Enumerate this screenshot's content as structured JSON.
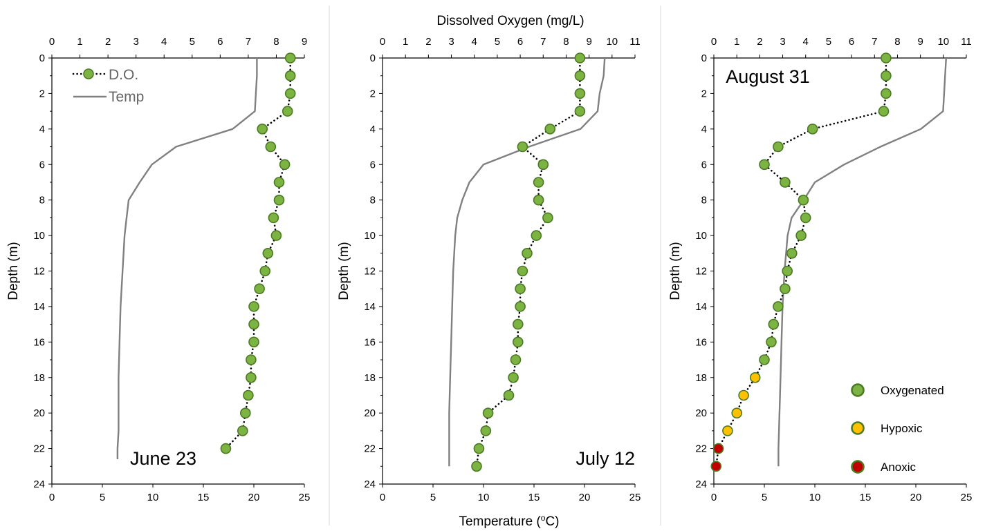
{
  "top_axis_title": "Dissolved Oxygen (mg/L)",
  "bottom_axis_title": "Temperature (°C)",
  "chart_data": [
    {
      "type": "line",
      "date_label": "June 23",
      "ylabel": "Depth (m)",
      "y_axis": {
        "range": [
          0,
          24
        ],
        "reversed": true,
        "ticks": [
          "0",
          "2",
          "4",
          "6",
          "8",
          "10",
          "12",
          "14",
          "16",
          "18",
          "20",
          "22",
          "24"
        ]
      },
      "do_axis": {
        "label": "",
        "range": [
          0,
          9
        ],
        "ticks": [
          "0",
          "1",
          "2",
          "3",
          "4",
          "5",
          "6",
          "7",
          "8",
          "9"
        ]
      },
      "temp_axis": {
        "label": "",
        "range": [
          0,
          25
        ],
        "ticks": [
          "0",
          "5",
          "10",
          "15",
          "20",
          "25"
        ]
      },
      "legend": [
        {
          "label": "D.O.",
          "marker": "circle",
          "color": "#7cb342"
        },
        {
          "label": "Temp",
          "marker": "line",
          "color": "#808080"
        }
      ],
      "dissolved_oxygen": {
        "depth": [
          0,
          1,
          2,
          3,
          4,
          5,
          6,
          7,
          8,
          9,
          10,
          11,
          12,
          13,
          14,
          15,
          16,
          17,
          18,
          19,
          20,
          21,
          22
        ],
        "values": [
          8.5,
          8.5,
          8.5,
          8.4,
          7.5,
          7.8,
          8.3,
          8.1,
          8.1,
          7.9,
          8.0,
          7.7,
          7.6,
          7.4,
          7.2,
          7.2,
          7.2,
          7.1,
          7.1,
          7.0,
          6.9,
          6.8,
          6.2
        ],
        "status": [
          "oxygenated",
          "oxygenated",
          "oxygenated",
          "oxygenated",
          "oxygenated",
          "oxygenated",
          "oxygenated",
          "oxygenated",
          "oxygenated",
          "oxygenated",
          "oxygenated",
          "oxygenated",
          "oxygenated",
          "oxygenated",
          "oxygenated",
          "oxygenated",
          "oxygenated",
          "oxygenated",
          "oxygenated",
          "oxygenated",
          "oxygenated",
          "oxygenated",
          "oxygenated"
        ]
      },
      "temperature": {
        "depth": [
          0,
          1,
          2,
          3,
          4,
          5,
          6,
          7,
          8,
          9,
          10,
          12,
          14,
          16,
          18,
          20,
          21,
          22,
          22.6
        ],
        "values": [
          20.3,
          20.3,
          20.2,
          20.1,
          17.9,
          12.3,
          9.9,
          8.7,
          7.6,
          7.4,
          7.2,
          7.0,
          6.8,
          6.7,
          6.6,
          6.6,
          6.6,
          6.5,
          6.5
        ]
      }
    },
    {
      "type": "line",
      "date_label": "July 12",
      "ylabel": "Depth (m)",
      "y_axis": {
        "range": [
          0,
          24
        ],
        "reversed": true,
        "ticks": [
          "0",
          "2",
          "4",
          "6",
          "8",
          "10",
          "12",
          "14",
          "16",
          "18",
          "20",
          "22",
          "24"
        ]
      },
      "do_axis": {
        "label": "Dissolved Oxygen (mg/L)",
        "range": [
          0,
          11
        ],
        "ticks": [
          "0",
          "1",
          "2",
          "3",
          "4",
          "5",
          "6",
          "7",
          "8",
          "9",
          "10",
          "11"
        ]
      },
      "temp_axis": {
        "label": "Temperature (°C)",
        "range": [
          0,
          25
        ],
        "ticks": [
          "0",
          "5",
          "10",
          "15",
          "20",
          "25"
        ]
      },
      "legend": [],
      "dissolved_oxygen": {
        "depth": [
          0,
          1,
          2,
          3,
          4,
          5,
          6,
          7,
          8,
          9,
          10,
          11,
          12,
          13,
          14,
          15,
          16,
          17,
          18,
          19,
          20,
          21,
          22,
          23
        ],
        "values": [
          8.6,
          8.6,
          8.6,
          8.6,
          7.3,
          6.1,
          7.0,
          6.8,
          6.8,
          7.2,
          6.7,
          6.3,
          6.1,
          6.0,
          6.0,
          5.9,
          5.9,
          5.8,
          5.7,
          5.5,
          4.6,
          4.5,
          4.2,
          4.1
        ],
        "status": [
          "oxygenated",
          "oxygenated",
          "oxygenated",
          "oxygenated",
          "oxygenated",
          "oxygenated",
          "oxygenated",
          "oxygenated",
          "oxygenated",
          "oxygenated",
          "oxygenated",
          "oxygenated",
          "oxygenated",
          "oxygenated",
          "oxygenated",
          "oxygenated",
          "oxygenated",
          "oxygenated",
          "oxygenated",
          "oxygenated",
          "oxygenated",
          "oxygenated",
          "oxygenated",
          "oxygenated"
        ]
      },
      "temperature": {
        "depth": [
          0,
          1,
          2,
          3,
          4,
          5,
          6,
          7,
          8,
          9,
          10,
          12,
          14,
          16,
          18,
          20,
          22,
          23
        ],
        "values": [
          22.0,
          21.9,
          21.5,
          21.3,
          19.6,
          14.5,
          10.0,
          8.6,
          7.9,
          7.4,
          7.2,
          7.0,
          6.9,
          6.8,
          6.7,
          6.6,
          6.6,
          6.6
        ]
      }
    },
    {
      "type": "line",
      "date_label": "August 31",
      "ylabel": "Depth (m)",
      "y_axis": {
        "range": [
          0,
          24
        ],
        "reversed": true,
        "ticks": [
          "0",
          "2",
          "4",
          "6",
          "8",
          "10",
          "12",
          "14",
          "16",
          "18",
          "20",
          "22",
          "24"
        ]
      },
      "do_axis": {
        "label": "",
        "range": [
          0,
          11
        ],
        "ticks": [
          "0",
          "1",
          "2",
          "3",
          "4",
          "5",
          "6",
          "7",
          "8",
          "9",
          "10",
          "11"
        ]
      },
      "temp_axis": {
        "label": "",
        "range": [
          0,
          25
        ],
        "ticks": [
          "0",
          "5",
          "10",
          "15",
          "20",
          "25"
        ]
      },
      "legend": [
        {
          "label": "Oxygenated",
          "marker": "circle",
          "color": "#7cb342"
        },
        {
          "label": "Hypoxic",
          "marker": "circle",
          "color": "#ffc000"
        },
        {
          "label": "Anoxic",
          "marker": "circle",
          "color": "#c00000"
        }
      ],
      "dissolved_oxygen": {
        "depth": [
          0,
          1,
          2,
          3,
          4,
          5,
          6,
          7,
          8,
          9,
          10,
          11,
          12,
          13,
          14,
          15,
          16,
          17,
          18,
          19,
          20,
          21,
          22,
          23
        ],
        "values": [
          7.5,
          7.5,
          7.5,
          7.4,
          4.3,
          2.8,
          2.2,
          3.1,
          3.9,
          4.0,
          3.8,
          3.4,
          3.2,
          3.1,
          2.8,
          2.6,
          2.5,
          2.2,
          1.8,
          1.3,
          1.0,
          0.6,
          0.2,
          0.1
        ],
        "status": [
          "oxygenated",
          "oxygenated",
          "oxygenated",
          "oxygenated",
          "oxygenated",
          "oxygenated",
          "oxygenated",
          "oxygenated",
          "oxygenated",
          "oxygenated",
          "oxygenated",
          "oxygenated",
          "oxygenated",
          "oxygenated",
          "oxygenated",
          "oxygenated",
          "oxygenated",
          "oxygenated",
          "hypoxic",
          "hypoxic",
          "hypoxic",
          "hypoxic",
          "anoxic",
          "anoxic"
        ]
      },
      "temperature": {
        "depth": [
          0,
          1,
          2,
          3,
          4,
          5,
          6,
          7,
          8,
          9,
          10,
          12,
          14,
          16,
          18,
          20,
          22,
          23
        ],
        "values": [
          23.0,
          22.9,
          22.8,
          22.7,
          20.5,
          16.5,
          12.9,
          10.0,
          8.9,
          7.7,
          7.3,
          7.0,
          6.8,
          6.7,
          6.6,
          6.5,
          6.4,
          6.4
        ]
      }
    }
  ],
  "colors": {
    "oxygenated": "#7cb342",
    "hypoxic": "#ffc000",
    "anoxic": "#c00000",
    "marker_edge": "#4a7a23",
    "temp_line": "#808080",
    "do_line": "#000000",
    "divider": "#d9d9d9"
  }
}
